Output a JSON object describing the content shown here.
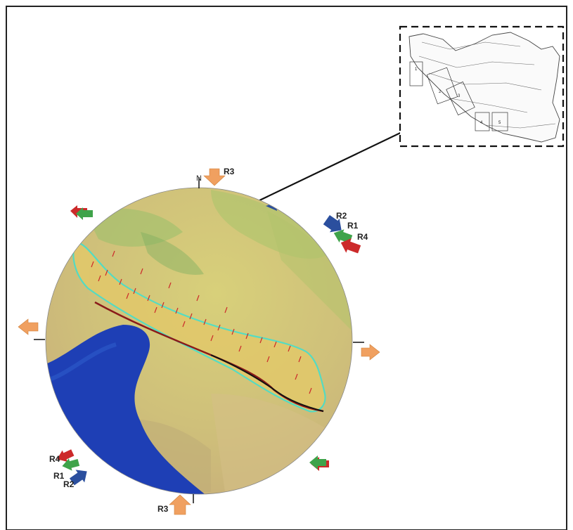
{
  "north_label": "N",
  "inset_numbers": [
    "1",
    "2",
    "3",
    "4",
    "5"
  ],
  "stress_labels": {
    "top": "R3",
    "bottom": "R3",
    "ne_r2": "R2",
    "ne_r1": "R1",
    "ne_r4": "R4",
    "sw_r4": "R4",
    "sw_r1": "R1",
    "sw_r2": "R2"
  },
  "colors": {
    "r1": "#3fa34a",
    "r2": "#2b4f9e",
    "r3": "#f0a060",
    "r4": "#cc2a2a",
    "sea": "#1e3fb5",
    "land": "#c9c56a",
    "zone_outline": "#3ee0d0",
    "fault": "#111111"
  },
  "icons": [
    "north-tick",
    "inset-map",
    "leader-line",
    "stress-arrow"
  ]
}
